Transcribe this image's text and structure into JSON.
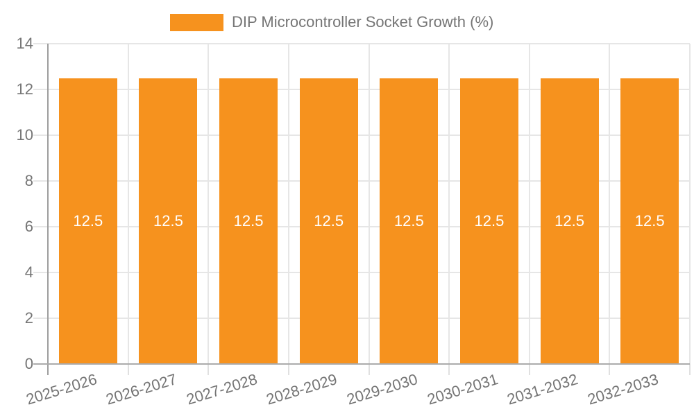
{
  "legend": {
    "label": "DIP Microcontroller Socket Growth (%)",
    "swatch_color": "#f6921e"
  },
  "chart_data": {
    "type": "bar",
    "title": "",
    "xlabel": "",
    "ylabel": "",
    "categories": [
      "2025-2026",
      "2026-2027",
      "2027-2028",
      "2028-2029",
      "2029-2030",
      "2030-2031",
      "2031-2032",
      "2032-2033"
    ],
    "series": [
      {
        "name": "DIP Microcontroller Socket Growth (%)",
        "values": [
          12.5,
          12.5,
          12.5,
          12.5,
          12.5,
          12.5,
          12.5,
          12.5
        ],
        "value_labels": [
          "12.5",
          "12.5",
          "12.5",
          "12.5",
          "12.5",
          "12.5",
          "12.5",
          "12.5"
        ],
        "color": "#f6921e"
      }
    ],
    "ylim": [
      0,
      14
    ],
    "y_ticks": [
      0,
      2,
      4,
      6,
      8,
      10,
      12,
      14
    ],
    "y_tick_labels": [
      "0",
      "2",
      "4",
      "6",
      "8",
      "10",
      "12",
      "14"
    ],
    "grid": true,
    "legend_position": "top-center",
    "x_label_rotation_deg": -17,
    "value_label_position": "inside-center",
    "colors": {
      "bar": "#f6921e",
      "axis_text": "#757575",
      "value_label_text": "#ffffff",
      "gridline": "#e6e6e6",
      "axis_line": "#9e9e9e",
      "background": "#ffffff"
    }
  }
}
